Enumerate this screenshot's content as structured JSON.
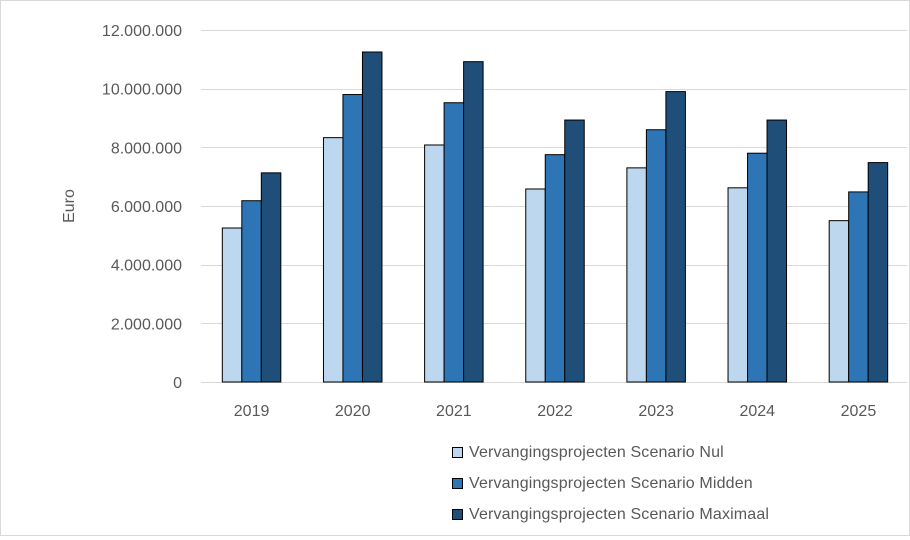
{
  "chart_data": {
    "type": "bar",
    "title": "",
    "xlabel": "",
    "ylabel": "Euro",
    "categories": [
      "2019",
      "2020",
      "2021",
      "2022",
      "2023",
      "2024",
      "2025"
    ],
    "series": [
      {
        "name": "Vervangingsprojecten Scenario Nul",
        "color": "#bdd7ee",
        "values": [
          5250000,
          8330000,
          8080000,
          6580000,
          7300000,
          6620000,
          5500000
        ]
      },
      {
        "name": "Vervangingsprojecten Scenario Midden",
        "color": "#2e75b6",
        "values": [
          6180000,
          9800000,
          9520000,
          7750000,
          8600000,
          7800000,
          6480000
        ]
      },
      {
        "name": "Vervangingsprojecten Scenario Maximaal",
        "color": "#1f4e79",
        "values": [
          7130000,
          11250000,
          10920000,
          8930000,
          9900000,
          8930000,
          7480000
        ]
      }
    ],
    "ylim": [
      0,
      12000000
    ],
    "yticks": [
      0,
      2000000,
      4000000,
      6000000,
      8000000,
      10000000,
      12000000
    ],
    "ytick_labels": [
      "0",
      "2.000.000",
      "4.000.000",
      "6.000.000",
      "8.000.000",
      "10.000.000",
      "12.000.000"
    ],
    "grid": true,
    "legend_position": "bottom-right"
  }
}
